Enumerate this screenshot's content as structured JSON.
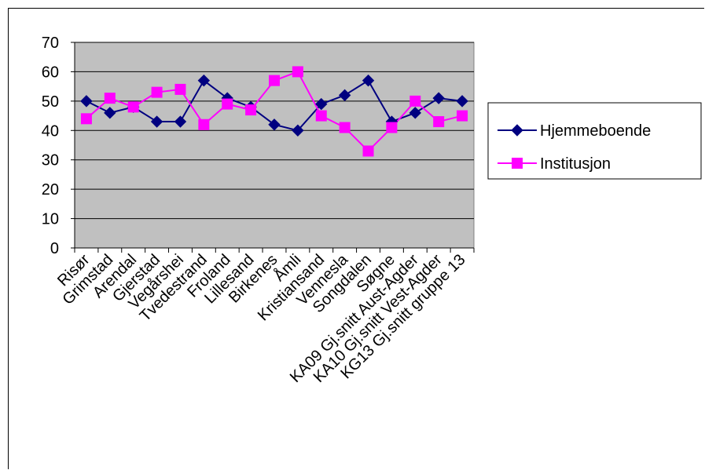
{
  "chart_data": {
    "type": "line",
    "categories": [
      "Risør",
      "Grimstad",
      "Arendal",
      "Gjerstad",
      "Vegårshei",
      "Tvedestrand",
      "Froland",
      "Lillesand",
      "Birkenes",
      "Åmli",
      "Kristiansand",
      "Vennesla",
      "Songdalen",
      "Søgne",
      "KA09 Gj.snitt Aust-Agder",
      "KA10 Gj.snitt Vest-Agder",
      "KG13 Gj.snitt gruppe 13"
    ],
    "series": [
      {
        "name": "Hjemmeboende",
        "color": "#000080",
        "marker": "diamond",
        "values": [
          50,
          46,
          48,
          43,
          43,
          57,
          51,
          48,
          42,
          40,
          49,
          52,
          57,
          43,
          46,
          51,
          50
        ]
      },
      {
        "name": "Institusjon",
        "color": "#ff00ff",
        "marker": "square",
        "values": [
          44,
          51,
          48,
          53,
          54,
          42,
          49,
          47,
          57,
          60,
          45,
          41,
          33,
          41,
          50,
          43,
          45
        ]
      }
    ],
    "ylim": [
      0,
      70
    ],
    "yticks": [
      0,
      10,
      20,
      30,
      40,
      50,
      60,
      70
    ],
    "grid": true,
    "plot_background": "#c0c0c0",
    "legend_position": "right",
    "title": "",
    "xlabel": "",
    "ylabel": ""
  }
}
